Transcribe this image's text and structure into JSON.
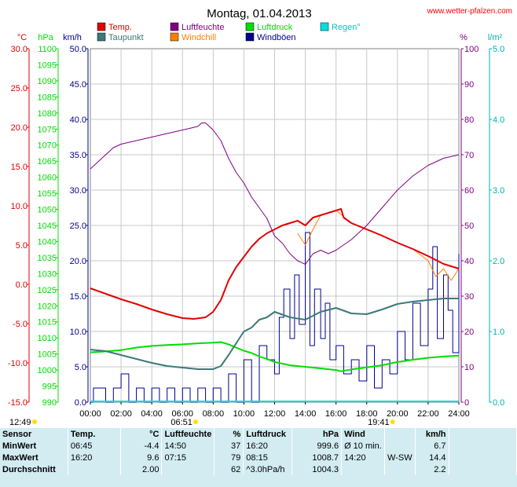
{
  "site": "www.wetter-pfalzen.com",
  "colors": {
    "temp": "#e00000",
    "dew": "#3a7a78",
    "humidity": "#800080",
    "windchill": "#ff8000",
    "pressure": "#00dd00",
    "wind": "#000090",
    "rain": "#00d8d8",
    "gust": "#000090"
  },
  "chart_data": {
    "type": "line",
    "title": "Montag, 01.04.2013",
    "legend": [
      {
        "name": "Temp.",
        "color": "#e00000"
      },
      {
        "name": "Luftfeuchte",
        "color": "#800080"
      },
      {
        "name": "Luftdruck",
        "color": "#00dd00"
      },
      {
        "name": "Regen°",
        "color": "#00e0e0"
      },
      {
        "name": "Taupunkt",
        "color": "#3a7a78"
      },
      {
        "name": "Windchill",
        "color": "#ff8000"
      },
      {
        "name": "Windböen",
        "color": "#000090"
      }
    ],
    "axes": {
      "temp": {
        "label": "°C",
        "ticks": [
          "30.0",
          "25.0",
          "20.0",
          "15.0",
          "10.0",
          "5.0",
          "0.0",
          "-5.0",
          "-10.0",
          "-15.0"
        ],
        "range": [
          -15,
          30
        ]
      },
      "pressure": {
        "label": "hPa",
        "ticks": [
          "1100",
          "1095",
          "1090",
          "1085",
          "1080",
          "1075",
          "1070",
          "1065",
          "1060",
          "1055",
          "1050",
          "1045",
          "1040",
          "1035",
          "1030",
          "1025",
          "1020",
          "1015",
          "1010",
          "1005",
          "1000",
          "995",
          "990"
        ],
        "range": [
          990,
          1100
        ]
      },
      "wind": {
        "label": "km/h",
        "ticks": [
          "50.0",
          "45.0",
          "40.0",
          "35.0",
          "30.0",
          "25.0",
          "20.0",
          "15.0",
          "10.0",
          "5.0",
          "0.0"
        ],
        "range": [
          0,
          50
        ]
      },
      "humidity": {
        "label": "%",
        "ticks": [
          "100",
          "90",
          "80",
          "70",
          "60",
          "50",
          "40",
          "30",
          "20",
          "10",
          "0"
        ],
        "range": [
          0,
          100
        ]
      },
      "rain": {
        "label": "l/m²",
        "ticks": [
          "5.0",
          "4.0",
          "3.0",
          "2.0",
          "1.0",
          "0.0"
        ],
        "range": [
          0,
          5
        ]
      },
      "x": {
        "ticks": [
          "00:00",
          "02:00",
          "04:00",
          "06:00",
          "08:00",
          "10:00",
          "12:00",
          "14:00",
          "16:00",
          "18:00",
          "20:00",
          "22:00",
          "24:00"
        ],
        "range": [
          0,
          24
        ]
      }
    },
    "sun": {
      "moonset": "12:49",
      "sunrise": "06:51",
      "sunset": "19:41"
    },
    "series": [
      {
        "name": "Temp.",
        "x": [
          0,
          1,
          2,
          3,
          4,
          5,
          6,
          6.75,
          7.5,
          8,
          8.5,
          9,
          9.5,
          10,
          10.5,
          11,
          11.5,
          12,
          12.5,
          13,
          13.5,
          14,
          14.5,
          15,
          15.5,
          16,
          16.33,
          16.5,
          17,
          18,
          19,
          20,
          21,
          22,
          23,
          24
        ],
        "values": [
          -0.5,
          -1.2,
          -1.9,
          -2.5,
          -3.2,
          -3.8,
          -4.3,
          -4.4,
          -4.2,
          -3.5,
          -2,
          0.5,
          2.2,
          3.5,
          4.8,
          5.8,
          6.5,
          7,
          7.5,
          7.8,
          8.1,
          7.5,
          8.5,
          8.8,
          9.1,
          9.4,
          9.6,
          8.5,
          7.8,
          7,
          6.2,
          5.3,
          4.5,
          3.6,
          2.6,
          2
        ]
      },
      {
        "name": "Taupunkt",
        "x": [
          0,
          1,
          2,
          3,
          4,
          5,
          6,
          7,
          8,
          8.5,
          9,
          9.5,
          10,
          10.5,
          11,
          11.5,
          12,
          13,
          14,
          15,
          16,
          17,
          18,
          19,
          20,
          21,
          22,
          23,
          24
        ],
        "values": [
          -8.3,
          -8.5,
          -9,
          -9.5,
          -10,
          -10.4,
          -10.6,
          -10.8,
          -10.8,
          -10.4,
          -9,
          -7.5,
          -6,
          -5.5,
          -4.5,
          -4.2,
          -3.5,
          -4.2,
          -4.5,
          -3.5,
          -3,
          -3.7,
          -3.8,
          -3.2,
          -2.5,
          -2.2,
          -2,
          -1.8,
          -1.8
        ]
      },
      {
        "name": "Luftfeuchte",
        "x": [
          0,
          0.5,
          1,
          1.5,
          2,
          3,
          4,
          5,
          6,
          7,
          7.25,
          7.5,
          8,
          8.5,
          9,
          9.5,
          10,
          10.5,
          11,
          11.5,
          12,
          12.5,
          13,
          13.5,
          14,
          14.5,
          15,
          15.5,
          16,
          17,
          18,
          19,
          20,
          21,
          22,
          23,
          24
        ],
        "values": [
          66,
          68,
          70,
          72,
          73,
          74,
          75,
          76,
          77,
          78,
          79,
          79,
          77,
          74,
          69,
          65,
          62,
          58,
          55,
          52,
          47,
          45,
          42,
          40,
          39,
          42,
          43,
          42,
          43,
          46,
          50,
          55,
          60,
          64,
          67,
          69,
          70
        ]
      },
      {
        "name": "Windchill",
        "x": [
          13.5,
          14,
          14.5,
          15,
          15.5,
          16,
          17,
          18,
          19,
          20,
          21,
          22,
          22.5,
          23,
          23.5,
          24
        ],
        "values": [
          6.5,
          5,
          7,
          8.8,
          9.1,
          9.4,
          7.8,
          7,
          6.2,
          5.3,
          4.5,
          3,
          1,
          2,
          0.5,
          2
        ]
      },
      {
        "name": "Luftdruck",
        "x": [
          0,
          1,
          2,
          3,
          4,
          5,
          6,
          7,
          8,
          8.5,
          9,
          9.5,
          10,
          10.5,
          11,
          11.5,
          12,
          13,
          14,
          15,
          16,
          16.33,
          17,
          18,
          19,
          20,
          21,
          22,
          23,
          24
        ],
        "values": [
          1005.5,
          1005.8,
          1006.2,
          1007,
          1007.5,
          1007.8,
          1008,
          1008.3,
          1008.5,
          1008.7,
          1008,
          1007,
          1006,
          1005.3,
          1004.2,
          1003.5,
          1002.5,
          1001.5,
          1001,
          1000.5,
          1000,
          999.6,
          1000.2,
          1000.8,
          1001.5,
          1002.5,
          1003.2,
          1003.8,
          1004.2,
          1004.5
        ]
      },
      {
        "name": "Windböen",
        "x": [
          0,
          0.2,
          0.5,
          1,
          1.5,
          2,
          2.5,
          3,
          3.5,
          4,
          4.5,
          5,
          5.5,
          6,
          6.5,
          7,
          7.5,
          8,
          8.5,
          9,
          9.5,
          10,
          10.5,
          11,
          11.5,
          12,
          12.3,
          12.6,
          13,
          13.3,
          13.6,
          14,
          14.3,
          14.6,
          15,
          15.3,
          15.6,
          16,
          16.5,
          17,
          17.5,
          18,
          18.5,
          19,
          19.5,
          20,
          20.5,
          21,
          21.5,
          22,
          22.3,
          22.6,
          23,
          23.3,
          23.6,
          24
        ],
        "values": [
          0,
          2,
          2,
          0,
          2,
          4,
          0,
          2,
          0,
          2,
          0,
          2,
          0,
          2,
          0,
          2,
          0,
          2,
          0,
          4,
          0,
          6,
          0,
          8,
          6,
          4,
          12,
          16,
          9,
          18,
          11,
          24,
          8,
          16,
          9,
          14,
          6,
          8,
          4,
          6,
          3,
          8,
          2,
          6,
          4,
          10,
          6,
          14,
          8,
          16,
          22,
          9,
          18,
          13,
          7,
          21
        ]
      }
    ]
  },
  "stats": {
    "header": {
      "sensor": "Sensor",
      "temp": "Temp.",
      "temp_unit": "°C",
      "hum": "Luftfeuchte",
      "hum_unit": "%",
      "press": "Luftdruck",
      "press_unit": "hPa",
      "wind": "Wind",
      "wind_unit": "km/h"
    },
    "rows": [
      {
        "label": "MinWert",
        "temp_time": "06:45",
        "temp_val": "-4.4",
        "hum_time": "14:50",
        "hum_val": "37",
        "press_time": "16:20",
        "press_val": "999.6",
        "wind_time": "Ø 10 min.",
        "wind_dir": "",
        "wind_val": "6.7"
      },
      {
        "label": "MaxWert",
        "temp_time": "16:20",
        "temp_val": "9.6",
        "hum_time": "07:15",
        "hum_val": "79",
        "press_time": "08:15",
        "press_val": "1008.7",
        "wind_time": "14:20",
        "wind_dir": "W-SW",
        "wind_val": "14.4"
      },
      {
        "label": "Durchschnitt",
        "temp_time": "",
        "temp_val": "2.00",
        "hum_time": "",
        "hum_val": "62",
        "press_time": "^3.0hPa/h",
        "press_val": "1004.3",
        "wind_time": "",
        "wind_dir": "",
        "wind_val": "2.2"
      }
    ]
  }
}
